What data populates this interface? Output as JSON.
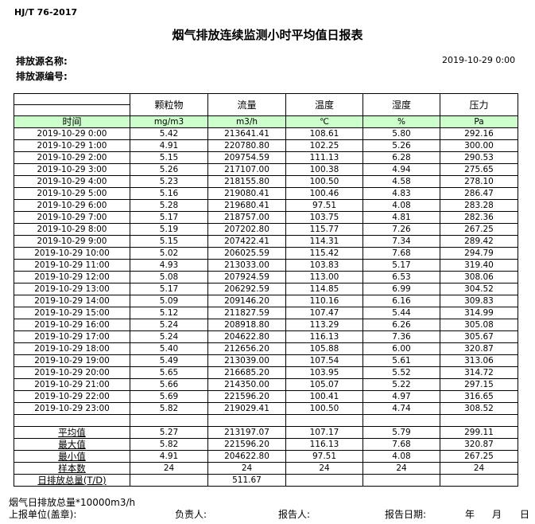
{
  "header": {
    "standard": "HJ/T  76-2017",
    "title": "烟气排放连续监测小时平均值日报表",
    "source_name_label": "排放源名称:",
    "source_no_label": "排放源编号:",
    "date": "2019-10-29 0:00"
  },
  "table": {
    "columns": [
      "颗粒物",
      "流量",
      "温度",
      "湿度",
      "压力"
    ],
    "time_label": "时间",
    "units": [
      "mg/m3",
      "m3/h",
      "℃",
      "%",
      "Pa"
    ],
    "rows": [
      [
        "2019-10-29 0:00",
        "5.42",
        "213641.41",
        "108.61",
        "5.80",
        "292.16"
      ],
      [
        "2019-10-29 1:00",
        "4.91",
        "220780.80",
        "102.25",
        "5.26",
        "300.00"
      ],
      [
        "2019-10-29 2:00",
        "5.15",
        "209754.59",
        "111.13",
        "6.28",
        "290.53"
      ],
      [
        "2019-10-29 3:00",
        "5.26",
        "217107.00",
        "100.38",
        "4.94",
        "275.65"
      ],
      [
        "2019-10-29 4:00",
        "5.23",
        "218155.80",
        "100.50",
        "4.58",
        "278.10"
      ],
      [
        "2019-10-29 5:00",
        "5.16",
        "219080.41",
        "100.46",
        "4.83",
        "286.47"
      ],
      [
        "2019-10-29 6:00",
        "5.28",
        "219680.41",
        "97.51",
        "4.08",
        "283.28"
      ],
      [
        "2019-10-29 7:00",
        "5.17",
        "218757.00",
        "103.75",
        "4.81",
        "282.36"
      ],
      [
        "2019-10-29 8:00",
        "5.19",
        "207202.80",
        "115.77",
        "7.26",
        "267.25"
      ],
      [
        "2019-10-29 9:00",
        "5.15",
        "207422.41",
        "114.31",
        "7.34",
        "289.42"
      ],
      [
        "2019-10-29 10:00",
        "5.02",
        "206025.59",
        "115.42",
        "7.68",
        "294.79"
      ],
      [
        "2019-10-29 11:00",
        "4.93",
        "213033.00",
        "103.83",
        "5.17",
        "319.40"
      ],
      [
        "2019-10-29 12:00",
        "5.08",
        "207924.59",
        "113.00",
        "6.53",
        "308.06"
      ],
      [
        "2019-10-29 13:00",
        "5.17",
        "206292.59",
        "114.85",
        "6.99",
        "304.52"
      ],
      [
        "2019-10-29 14:00",
        "5.09",
        "209146.20",
        "110.16",
        "6.16",
        "309.83"
      ],
      [
        "2019-10-29 15:00",
        "5.12",
        "211827.59",
        "107.47",
        "5.44",
        "314.99"
      ],
      [
        "2019-10-29 16:00",
        "5.24",
        "208918.80",
        "113.29",
        "6.26",
        "305.08"
      ],
      [
        "2019-10-29 17:00",
        "5.24",
        "204622.80",
        "116.13",
        "7.36",
        "305.67"
      ],
      [
        "2019-10-29 18:00",
        "5.40",
        "212656.20",
        "105.88",
        "6.00",
        "320.87"
      ],
      [
        "2019-10-29 19:00",
        "5.49",
        "213039.00",
        "107.54",
        "5.61",
        "313.06"
      ],
      [
        "2019-10-29 20:00",
        "5.65",
        "216685.20",
        "103.95",
        "5.52",
        "314.72"
      ],
      [
        "2019-10-29 21:00",
        "5.66",
        "214350.00",
        "105.07",
        "5.22",
        "297.15"
      ],
      [
        "2019-10-29 22:00",
        "5.69",
        "221596.20",
        "100.41",
        "4.97",
        "316.65"
      ],
      [
        "2019-10-29 23:00",
        "5.82",
        "219029.41",
        "100.50",
        "4.74",
        "308.52"
      ]
    ],
    "summary": [
      [
        "平均值",
        "5.27",
        "213197.07",
        "107.17",
        "5.79",
        "299.11"
      ],
      [
        "最大值",
        "5.82",
        "221596.20",
        "116.13",
        "7.68",
        "320.87"
      ],
      [
        "最小值",
        "4.91",
        "204622.80",
        "97.51",
        "4.08",
        "267.25"
      ],
      [
        "样本数",
        "24",
        "24",
        "24",
        "24",
        "24"
      ],
      [
        "日排放总量(T/D)",
        "",
        "511.67",
        "",
        "",
        ""
      ]
    ]
  },
  "footer": {
    "note": "烟气日排放总量*10000m3/h",
    "unit_label": "上报单位(盖章):",
    "responsible_label": "负责人:",
    "reporter_label": "报告人:",
    "report_date_label": "报告日期:",
    "year": "年",
    "month": "月",
    "day": "日"
  }
}
